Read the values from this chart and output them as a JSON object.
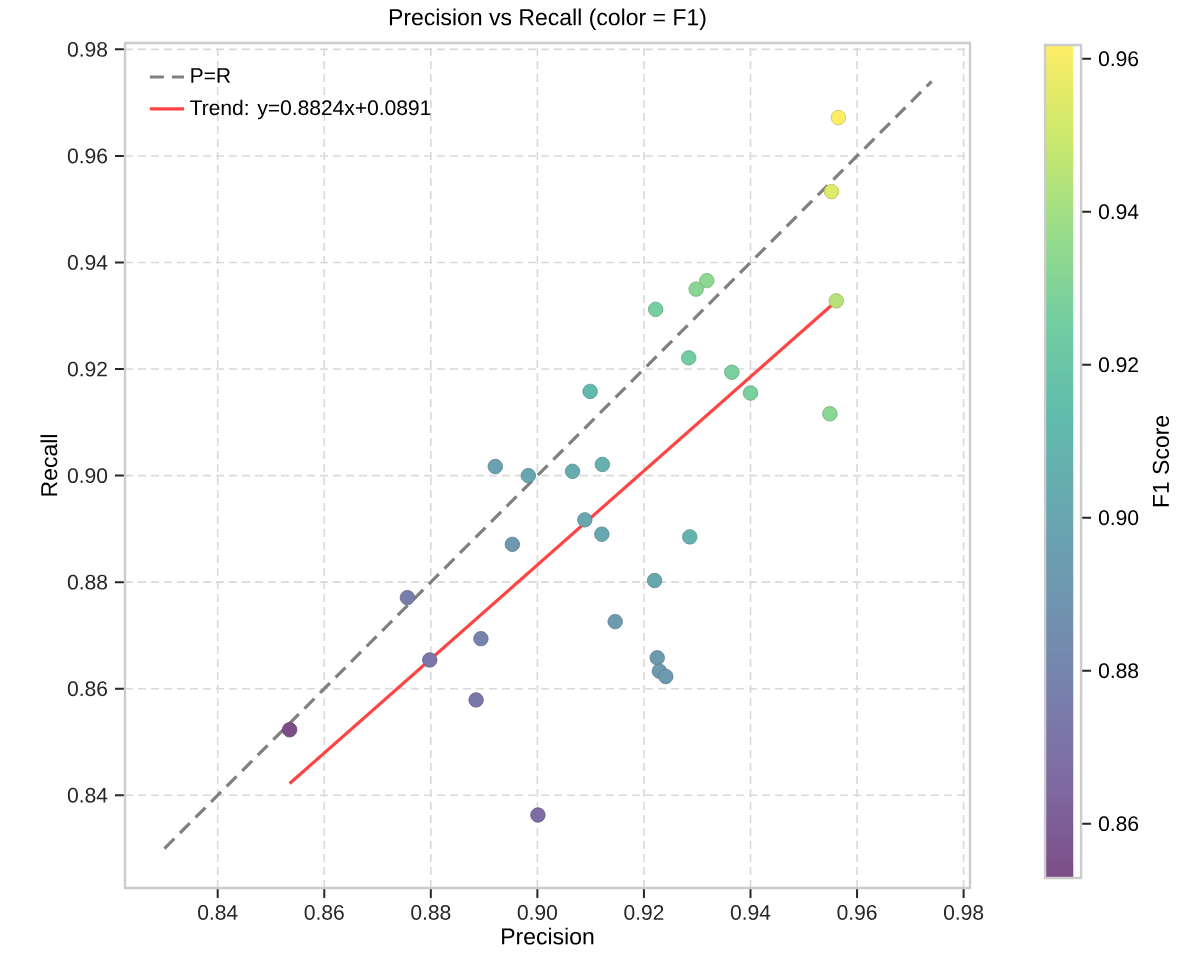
{
  "chart_data": {
    "type": "scatter",
    "title": "Precision vs Recall (color = F1)",
    "xlabel": "Precision",
    "ylabel": "Recall",
    "clabel": "F1 Score",
    "xlim": [
      0.8226,
      0.9812
    ],
    "ylim": [
      0.8226,
      0.9812
    ],
    "xticks": [
      0.84,
      0.86,
      0.88,
      {
        "value": 0.9,
        "label": "0.90"
      },
      0.92,
      0.94,
      0.96,
      0.98
    ],
    "yticks": [
      0.84,
      0.86,
      0.88,
      {
        "value": 0.9,
        "label": "0.90"
      },
      0.92,
      0.94,
      0.96,
      0.98
    ],
    "clim": [
      0.8529,
      0.9618
    ],
    "cticks": [
      0.86,
      0.88,
      {
        "value": 0.9,
        "label": "0.90"
      },
      0.92,
      0.94,
      0.96
    ],
    "grid": true,
    "legend": "top left",
    "marker": "circle",
    "series": [
      {
        "colors": [
          "#FEEE66",
          "#DEEA69",
          "#B5E379",
          "#8AD793",
          "#8FD891",
          "#89D694",
          "#76CF9F",
          "#72CCA1",
          "#7AD09C",
          "#79D09D",
          "#62BAAC",
          "#68A5B0",
          "#66ACAF",
          "#65B1AE",
          "#68A6B0",
          "#68A7B0",
          "#64B3AE",
          "#67A7B0",
          "#6C9BB0",
          "#6C9BB0",
          "#6D9AB0",
          "#6D9AB0",
          "#7E6DA3",
          "#6AA1B0",
          "#6E98B0",
          "#787EAB",
          "#7684AD",
          "#7B77A8",
          "#7A78A8",
          "#7C4D87"
        ],
        "x": [
          0.9565,
          0.9552,
          0.9561,
          0.9549,
          0.9318,
          0.9298,
          0.9222,
          0.9284,
          0.9365,
          0.94,
          0.9099,
          0.8983,
          0.9066,
          0.9122,
          0.9089,
          0.9121,
          0.9286,
          0.922,
          0.9146,
          0.9225,
          0.9229,
          0.9241,
          0.9001,
          0.8921,
          0.8953,
          0.8756,
          0.8894,
          0.8798,
          0.8885,
          0.8535
        ],
        "values": [
          0.9672,
          0.9533,
          0.9328,
          0.9116,
          0.9366,
          0.935,
          0.9312,
          0.9221,
          0.9194,
          0.9155,
          0.9158,
          0.9,
          0.9008,
          0.9021,
          0.8917,
          0.889,
          0.8885,
          0.8803,
          0.8726,
          0.8658,
          0.8633,
          0.8623,
          0.8363,
          0.9017,
          0.8871,
          0.8771,
          0.8694,
          0.8654,
          0.8579,
          0.8523
        ],
        "cvalues": [
          0.9618,
          0.9542,
          0.9443,
          0.9328,
          0.9342,
          0.9324,
          0.9267,
          0.9252,
          0.9279,
          0.9276,
          0.9128,
          0.8991,
          0.9037,
          0.9071,
          0.9002,
          0.9004,
          0.9081,
          0.9007,
          0.8931,
          0.8933,
          0.8921,
          0.8921,
          0.867,
          0.8969,
          0.8912,
          0.8763,
          0.8793,
          0.8725,
          0.8729,
          0.8529
        ]
      },
      {
        "type": "line",
        "name": "P=R",
        "color": "#808080",
        "line_style": "dashed",
        "marker": "none",
        "x": [
          0.83,
          0.974
        ],
        "values": [
          0.83,
          0.974
        ]
      },
      {
        "type": "line",
        "name": "Trend: y=0.8824x+0.0891",
        "color": "#ff4444",
        "line_style": "solid",
        "marker": "none",
        "x": [
          0.8535,
          0.9565
        ],
        "values": [
          0.8422,
          0.9331
        ]
      }
    ]
  }
}
